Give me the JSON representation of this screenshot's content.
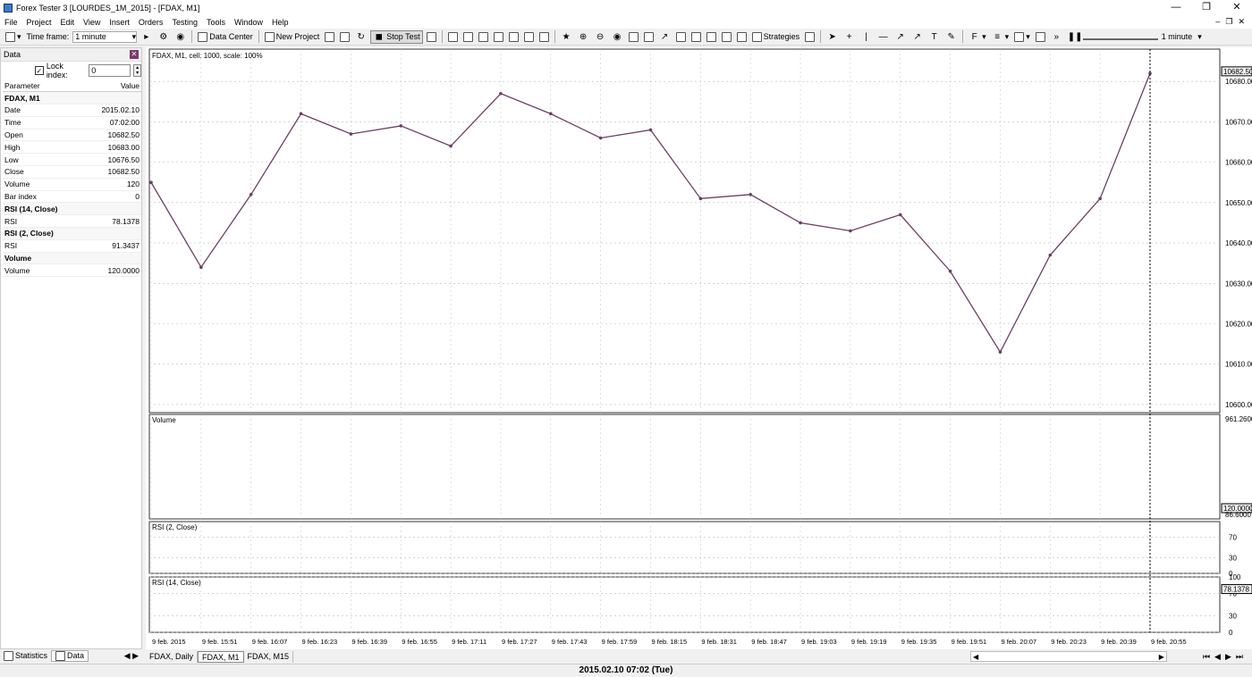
{
  "window": {
    "title": "Forex Tester 3  [LOURDES_1M_2015] - [FDAX, M1]",
    "min": "—",
    "max": "❐",
    "close": "✕"
  },
  "menu": [
    "File",
    "Project",
    "Edit",
    "View",
    "Insert",
    "Orders",
    "Testing",
    "Tools",
    "Window",
    "Help"
  ],
  "toolbar": {
    "timeframe_label": "Time frame:",
    "timeframe_value": "1 minute",
    "data_center": "Data Center",
    "new_project": "New Project",
    "stop_test": "Stop Test",
    "strategies": "Strategies",
    "speed_value": "1 minute"
  },
  "left_panel": {
    "title": "Data",
    "lock_label": "Lock index:",
    "lock_value": "0",
    "col_param": "Parameter",
    "col_value": "Value",
    "rows": [
      {
        "type": "section",
        "label": "FDAX, M1"
      },
      {
        "label": "Date",
        "value": "2015.02.10"
      },
      {
        "label": "Time",
        "value": "07:02:00"
      },
      {
        "label": "Open",
        "value": "10682.50"
      },
      {
        "label": "High",
        "value": "10683.00"
      },
      {
        "label": "Low",
        "value": "10676.50"
      },
      {
        "label": "Close",
        "value": "10682.50"
      },
      {
        "label": "Volume",
        "value": "120"
      },
      {
        "label": "Bar index",
        "value": "0"
      },
      {
        "type": "section",
        "label": "RSI (14, Close)"
      },
      {
        "label": "RSI",
        "value": "78.1378"
      },
      {
        "type": "section",
        "label": "RSI (2, Close)"
      },
      {
        "label": "RSI",
        "value": "91.3437"
      },
      {
        "type": "section",
        "label": "Volume"
      },
      {
        "label": "Volume",
        "value": "120.0000"
      }
    ],
    "tabs": [
      "Statistics",
      "Data"
    ]
  },
  "chart": {
    "main_label": "FDAX, M1, cell: 1000, scale: 100%",
    "price_labels": [
      "10680.00",
      "10670.00",
      "10660.00",
      "10650.00",
      "10640.00",
      "10630.00",
      "10620.00",
      "10610.00",
      "10600.00"
    ],
    "current_price": "10682.50",
    "volume_label": "Volume",
    "volume_top": "961.2600",
    "volume_current": "120.0000",
    "volume_bottom": "86.6000",
    "rsi2_label": "RSI (2, Close)",
    "rsi2_levels": [
      "70",
      "30",
      "0"
    ],
    "rsi14_label": "RSI (14, Close)",
    "rsi14_levels": [
      "100",
      "70",
      "30",
      "0"
    ],
    "rsi14_current": "78.1378",
    "time_labels": [
      "9 feb. 2015",
      "9 feb. 15:51",
      "9 feb. 16:07",
      "9 feb. 16:23",
      "9 feb. 16:39",
      "9 feb. 16:55",
      "9 feb. 17:11",
      "9 feb. 17:27",
      "9 feb. 17:43",
      "9 feb. 17:59",
      "9 feb. 18:15",
      "9 feb. 18:31",
      "9 feb. 18:47",
      "9 feb. 19:03",
      "9 feb. 19:19",
      "9 feb. 19:35",
      "9 feb. 19:51",
      "9 feb. 20:07",
      "9 feb. 20:23",
      "9 feb. 20:39",
      "9 feb. 20:55"
    ],
    "candle_color": "#6b3f63",
    "volume_color": "#0f3d10"
  },
  "chart_tabs": [
    "FDAX, Daily",
    "FDAX, M1",
    "FDAX, M15"
  ],
  "status": "2015.02.10 07:02 (Tue)",
  "chart_data": {
    "type": "line",
    "title": "FDAX, M1, cell: 1000, scale: 100%",
    "x": [
      "9 feb. 2015",
      "9 feb. 15:51",
      "9 feb. 16:07",
      "9 feb. 16:23",
      "9 feb. 16:39",
      "9 feb. 16:55",
      "9 feb. 17:11",
      "9 feb. 17:27",
      "9 feb. 17:43",
      "9 feb. 17:59",
      "9 feb. 18:15",
      "9 feb. 18:31",
      "9 feb. 18:47",
      "9 feb. 19:03",
      "9 feb. 19:19",
      "9 feb. 19:35",
      "9 feb. 19:51",
      "9 feb. 20:07",
      "9 feb. 20:23",
      "9 feb. 20:39",
      "9 feb. 20:55"
    ],
    "series": [
      {
        "values": [
          10655,
          10634,
          10652,
          10672,
          10667,
          10669,
          10664,
          10677,
          10672,
          10666,
          10668,
          10651,
          10652,
          10645,
          10643,
          10647,
          10633,
          10613,
          10637,
          10651,
          10682
        ]
      }
    ],
    "ylim": [
      10598,
      10688
    ]
  }
}
